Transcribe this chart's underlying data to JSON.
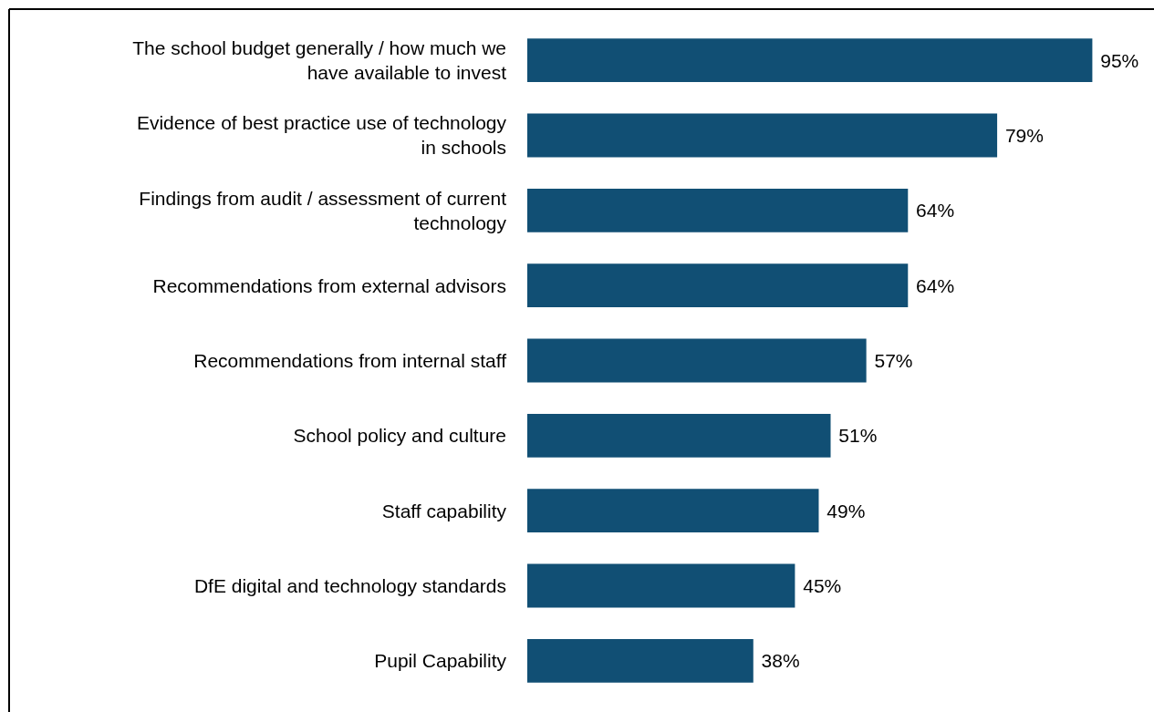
{
  "chart_data": {
    "type": "bar",
    "orientation": "horizontal",
    "categories": [
      "The school budget generally / how much we have available to invest",
      "Evidence of best practice use of technology in schools",
      "Findings from audit / assessment of current technology",
      "Recommendations from external advisors",
      "Recommendations from internal staff",
      "School policy and culture",
      "Staff capability",
      "DfE digital and technology standards",
      "Pupil Capability"
    ],
    "values": [
      95,
      79,
      64,
      64,
      57,
      51,
      49,
      45,
      38
    ],
    "value_labels": [
      "95%",
      "79%",
      "64%",
      "64%",
      "57%",
      "51%",
      "49%",
      "45%",
      "38%"
    ],
    "color": "#114f74"
  }
}
